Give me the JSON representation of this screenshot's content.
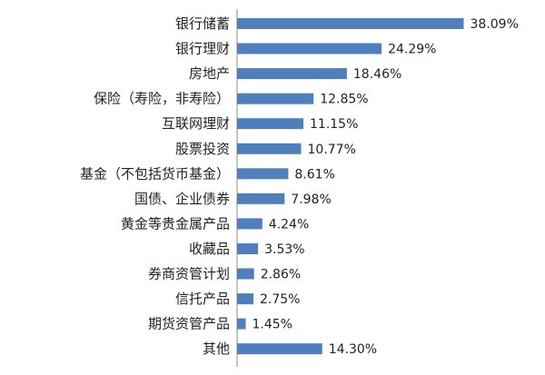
{
  "chart_data": {
    "type": "bar",
    "orientation": "horizontal",
    "categories": [
      "银行储蓄",
      "银行理财",
      "房地产",
      "保险（寿险，非寿险）",
      "互联网理财",
      "股票投资",
      "基金（不包括货币基金）",
      "国债、企业债券",
      "黄金等贵金属产品",
      "收藏品",
      "券商资管计划",
      "信托产品",
      "期货资管产品",
      "其他"
    ],
    "values": [
      38.09,
      24.29,
      18.46,
      12.85,
      11.15,
      10.77,
      8.61,
      7.98,
      4.24,
      3.53,
      2.86,
      2.75,
      1.45,
      14.3
    ],
    "value_labels": [
      "38.09%",
      "24.29%",
      "18.46%",
      "12.85%",
      "11.15%",
      "10.77%",
      "8.61%",
      "7.98%",
      "4.24%",
      "3.53%",
      "2.86%",
      "2.75%",
      "1.45%",
      "14.30%"
    ],
    "title": "",
    "xlabel": "",
    "ylabel": "",
    "xlim": [
      0,
      40
    ],
    "grid": false,
    "legend": "none",
    "bar_color": "#4f7fbd",
    "axis_color": "#888888"
  }
}
